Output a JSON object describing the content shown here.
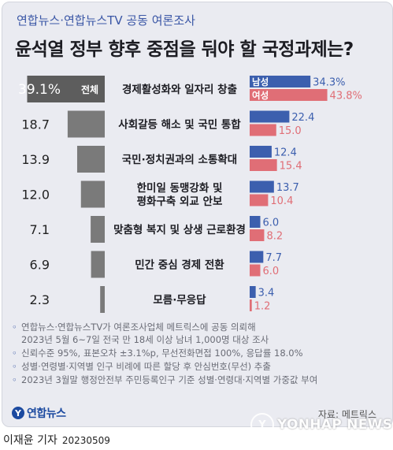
{
  "header": {
    "kicker": "연합뉴스·연합뉴스TV 공동 여론조사",
    "title": "윤석열 정부 향후 중점을 둬야 할 국정과제는?"
  },
  "chart_data": {
    "type": "bar",
    "categories": [
      "경제활성화와 일자리 창출",
      "사회갈등 해소 및 국민 통합",
      "국민·정치권과의 소통확대",
      "한미일 동맹강화 및\n평화구축 외교 안보",
      "맞춤형 복지 및 상생 근로환경",
      "민간 중심 경제 전환",
      "모름·무응답"
    ],
    "total": {
      "label": "전체",
      "values": [
        39.1,
        18.7,
        13.9,
        12.0,
        7.1,
        6.9,
        2.3
      ],
      "first_label": "39.1%"
    },
    "series": [
      {
        "name": "남성",
        "values": [
          34.3,
          22.4,
          12.4,
          13.7,
          6.0,
          7.7,
          3.4
        ],
        "first_label": "34.3%"
      },
      {
        "name": "여성",
        "values": [
          43.8,
          15.0,
          15.4,
          10.4,
          8.2,
          6.0,
          1.2
        ],
        "first_label": "43.8%"
      }
    ],
    "colors": {
      "total": "#7a7a7a",
      "total_first": "#5d5d5d",
      "male": "#3c5fae",
      "female": "#e06e76"
    }
  },
  "notes": [
    "연합뉴스·연합뉴스TV가 여론조사업체 메트릭스에 공동 의뢰해\n2023년 5월 6~7일 전국 만 18세 이상 남녀 1,000명 대상 조사",
    "신뢰수준 95%, 표본오차 ±3.1%p, 무선전화면접 100%, 응답률 18.0%",
    "성별·연령별·지역별 인구 비례에 따른 할당 후 안심번호(무선) 추출",
    "2023년 3월말 행정안전부 주민등록인구 기준 성별·연령대·지역별 가중값 부여"
  ],
  "footer": {
    "logo": "연합뉴스",
    "source": "자료: 메트릭스",
    "reporter": "이재윤 기자",
    "date": "20230509",
    "watermark": "YONHAP NEWS"
  }
}
